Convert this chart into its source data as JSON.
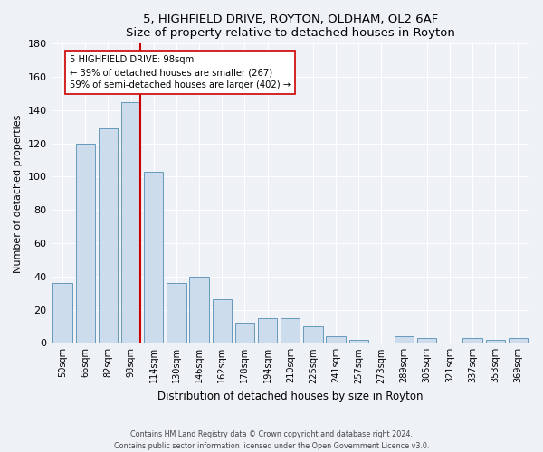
{
  "title1": "5, HIGHFIELD DRIVE, ROYTON, OLDHAM, OL2 6AF",
  "title2": "Size of property relative to detached houses in Royton",
  "xlabel": "Distribution of detached houses by size in Royton",
  "ylabel": "Number of detached properties",
  "bar_color": "#ccdcec",
  "bar_edge_color": "#6699bb",
  "categories": [
    "50sqm",
    "66sqm",
    "82sqm",
    "98sqm",
    "114sqm",
    "130sqm",
    "146sqm",
    "162sqm",
    "178sqm",
    "194sqm",
    "210sqm",
    "225sqm",
    "241sqm",
    "257sqm",
    "273sqm",
    "289sqm",
    "305sqm",
    "321sqm",
    "337sqm",
    "353sqm",
    "369sqm"
  ],
  "values": [
    36,
    120,
    129,
    145,
    103,
    36,
    40,
    26,
    12,
    15,
    15,
    10,
    4,
    2,
    0,
    4,
    3,
    0,
    3,
    2,
    3
  ],
  "property_size_label": "5 HIGHFIELD DRIVE: 98sqm",
  "pct_smaller": 39,
  "n_smaller": 267,
  "pct_larger_semi": 59,
  "n_larger_semi": 402,
  "red_line_color": "#cc0000",
  "annotation_box_color": "#ffffff",
  "annotation_box_edge": "#cc0000",
  "ylim": [
    0,
    180
  ],
  "yticks": [
    0,
    20,
    40,
    60,
    80,
    100,
    120,
    140,
    160,
    180
  ],
  "footer1": "Contains HM Land Registry data © Crown copyright and database right 2024.",
  "footer2": "Contains public sector information licensed under the Open Government Licence v3.0.",
  "background_color": "#eef2f7",
  "prop_idx": 3
}
